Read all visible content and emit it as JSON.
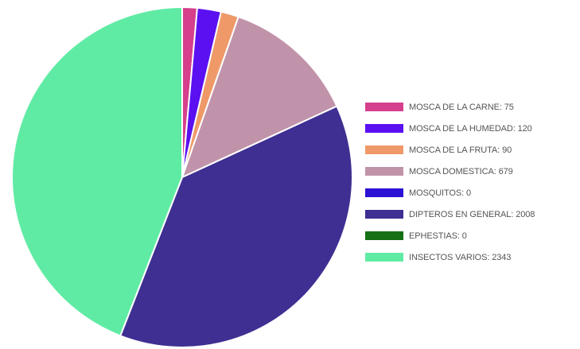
{
  "chart_data": {
    "type": "pie",
    "title": "",
    "legend_position": "right",
    "slices": [
      {
        "label": "MOSCA DE LA CARNE",
        "value": 75,
        "color": "#d63f8c",
        "legend_text": "MOSCA DE LA CARNE: 75"
      },
      {
        "label": "MOSCA DE LA HUMEDAD",
        "value": 120,
        "color": "#5b10f2",
        "legend_text": "MOSCA DE LA HUMEDAD: 120"
      },
      {
        "label": "MOSCA DE LA FRUTA",
        "value": 90,
        "color": "#ef9968",
        "legend_text": "MOSCA DE LA FRUTA: 90"
      },
      {
        "label": "MOSCA DOMESTICA",
        "value": 679,
        "color": "#c193aa",
        "legend_text": "MOSCA DOMESTICA: 679"
      },
      {
        "label": "MOSQUITOS",
        "value": 0,
        "color": "#2b12d4",
        "legend_text": "MOSQUITOS: 0"
      },
      {
        "label": "DIPTEROS EN GENERAL",
        "value": 2008,
        "color": "#3f2f92",
        "legend_text": "DIPTEROS EN GENERAL: 2008"
      },
      {
        "label": "EPHESTIAS",
        "value": 0,
        "color": "#157015",
        "legend_text": "EPHESTIAS: 0"
      },
      {
        "label": "INSECTOS VARIOS",
        "value": 2343,
        "color": "#60eba4",
        "legend_text": "INSECTOS VARIOS: 2343"
      }
    ]
  }
}
